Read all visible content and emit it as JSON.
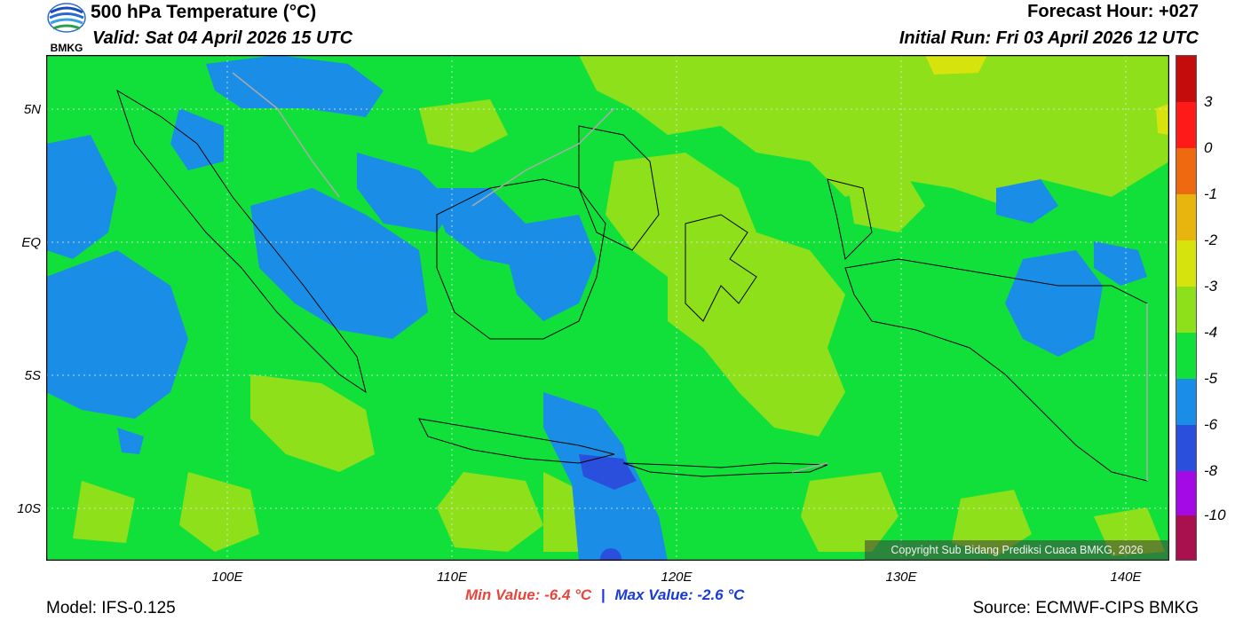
{
  "header": {
    "title": "500 hPa Temperature (°C)",
    "valid": "Valid: Sat 04 April 2026 15 UTC",
    "forecast_hour": "Forecast Hour: +027",
    "initial_run": "Initial Run: Fri 03 April 2026 12 UTC"
  },
  "logo": {
    "text": "BMKG",
    "icon": "bmkg-logo-icon"
  },
  "axes": {
    "lat_labels": [
      "5N",
      "EQ",
      "5S",
      "10S"
    ],
    "lon_labels": [
      "100E",
      "110E",
      "120E",
      "130E",
      "140E"
    ]
  },
  "colorbar": {
    "labels": [
      "3",
      "0",
      "-1",
      "-2",
      "-3",
      "-4",
      "-5",
      "-6",
      "-8",
      "-10"
    ],
    "colors": [
      "#c40c0c",
      "#ff1a1a",
      "#ee6a10",
      "#e8b50e",
      "#d6e30c",
      "#8ee01a",
      "#12e03a",
      "#1a8ee6",
      "#2a4fdc",
      "#a40ae6",
      "#a8104e"
    ]
  },
  "stats": {
    "min": "Min Value: -6.4 °C",
    "separator": "|",
    "max": "Max Value: -2.6 °C"
  },
  "footer": {
    "model": "Model: IFS-0.125",
    "source": "Source: ECMWF-CIPS BMKG",
    "copyright": "Copyright Sub Bidang Prediksi Cuaca BMKG, 2026"
  },
  "map_colors": {
    "green": "#12e03a",
    "light_green": "#8ee01a",
    "blue": "#1a8ee6",
    "dark_blue": "#2a4fdc",
    "yellow": "#d6e30c"
  }
}
